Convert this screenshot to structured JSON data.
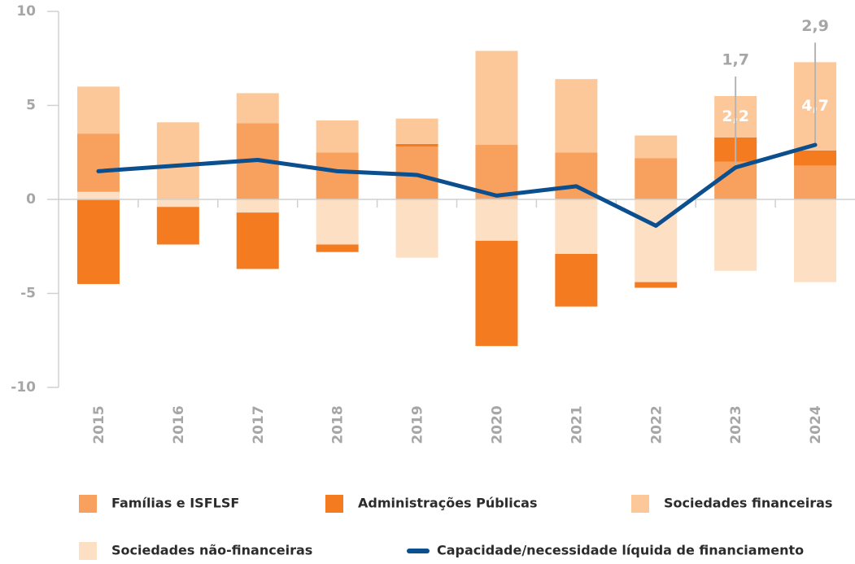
{
  "chart_data": {
    "type": "bar",
    "categories": [
      "2015",
      "2016",
      "2017",
      "2018",
      "2019",
      "2020",
      "2021",
      "2022",
      "2023",
      "2024"
    ],
    "ylim": [
      -10,
      10
    ],
    "yticks": [
      -10,
      -5,
      0,
      5,
      10
    ],
    "series": [
      {
        "name": "Famílias e ISFLSF",
        "color": "#f8a15e",
        "values": [
          3.1,
          0,
          4.05,
          2.5,
          2.8,
          2.9,
          2.5,
          2.2,
          2.0,
          1.8
        ]
      },
      {
        "name": "Administrações Públicas",
        "color": "#f47b20",
        "values": [
          -4.5,
          -2.0,
          -3.0,
          -0.4,
          0.15,
          -5.6,
          -2.8,
          -0.3,
          1.3,
          0.8
        ]
      },
      {
        "name": "Sociedades financeiras",
        "color": "#fcc89a",
        "values": [
          2.5,
          4.1,
          1.6,
          1.7,
          1.35,
          5.0,
          3.9,
          1.2,
          2.2,
          4.7
        ],
        "value_labels": [
          null,
          null,
          null,
          null,
          null,
          null,
          null,
          null,
          "2,2",
          "4,7"
        ]
      },
      {
        "name": "Sociedades não-financeiras",
        "color": "#fddfc4",
        "values": [
          0.4,
          -0.4,
          -0.7,
          -2.4,
          -3.1,
          -2.2,
          -2.9,
          -4.4,
          -3.8,
          -4.4
        ]
      },
      {
        "name": "Capacidade/necessidade líquida de financiamento",
        "type": "line",
        "color": "#0b4f8e",
        "values": [
          1.5,
          1.8,
          2.1,
          1.5,
          1.3,
          0.2,
          0.7,
          -1.4,
          1.7,
          2.9
        ],
        "value_labels": [
          null,
          null,
          null,
          null,
          null,
          null,
          null,
          null,
          "1,7",
          "2,9"
        ]
      }
    ]
  }
}
